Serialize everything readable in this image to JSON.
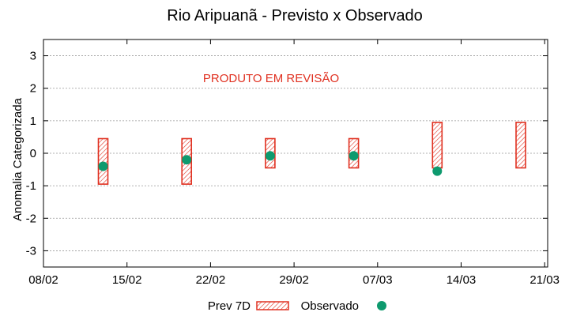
{
  "chart_data": {
    "type": "range-bar-scatter",
    "title": "Rio Aripuanã - Previsto x Observado",
    "ylabel": "Anomalia Categorizada",
    "xlabel": "",
    "annotation": "PRODUTO EM REVISÃO",
    "annotation_color": "#e03020",
    "ylim": [
      -3.5,
      3.5
    ],
    "yticks": [
      -3,
      -2,
      -1,
      0,
      1,
      2,
      3
    ],
    "x_ticks": [
      "08/02",
      "15/02",
      "22/02",
      "29/02",
      "07/03",
      "14/03",
      "21/03"
    ],
    "grid": true,
    "legend_position": "bottom",
    "series": [
      {
        "name": "Prev 7D",
        "kind": "range",
        "color": "#e03020",
        "points": [
          {
            "x": "13/02",
            "low": -0.95,
            "high": 0.45
          },
          {
            "x": "20/02",
            "low": -0.95,
            "high": 0.45
          },
          {
            "x": "27/02",
            "low": -0.45,
            "high": 0.45
          },
          {
            "x": "05/03",
            "low": -0.45,
            "high": 0.45
          },
          {
            "x": "12/03",
            "low": -0.45,
            "high": 0.95
          },
          {
            "x": "19/03",
            "low": -0.45,
            "high": 0.95
          }
        ]
      },
      {
        "name": "Observado",
        "kind": "point",
        "color": "#0e9a6e",
        "points": [
          {
            "x": "13/02",
            "y": -0.4
          },
          {
            "x": "20/02",
            "y": -0.2
          },
          {
            "x": "27/02",
            "y": -0.08
          },
          {
            "x": "05/03",
            "y": -0.08
          },
          {
            "x": "12/03",
            "y": -0.55
          }
        ]
      }
    ]
  }
}
